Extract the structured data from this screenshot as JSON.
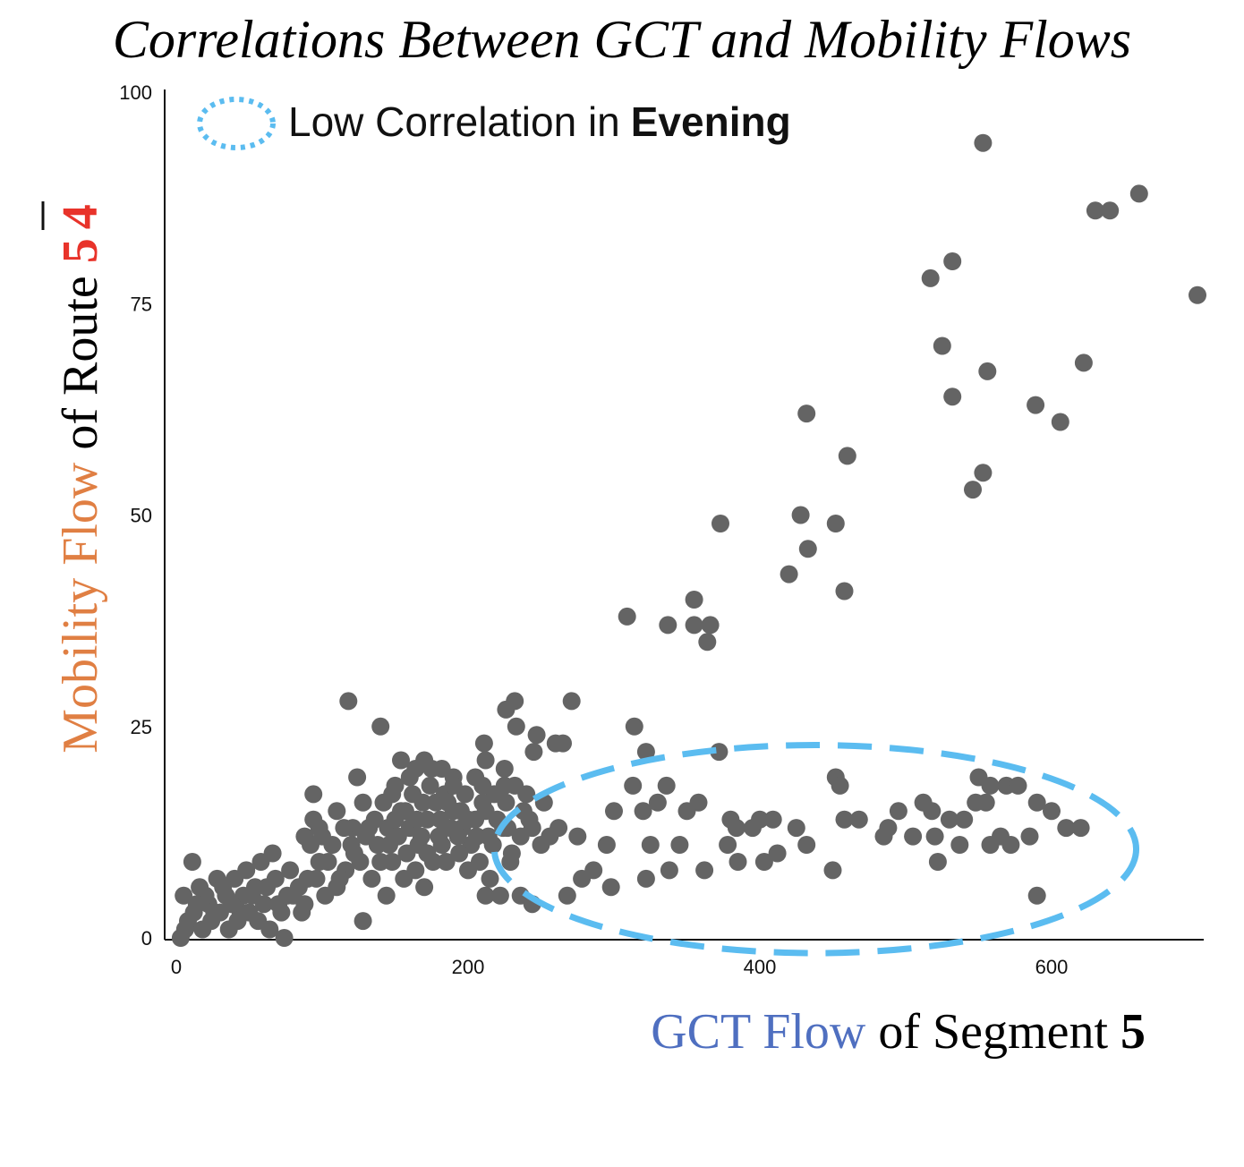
{
  "colors": {
    "point": "#646464",
    "axis": "#111111",
    "ellipse": "#5bbcf0",
    "title": "#000000",
    "mobility": "#e07f43",
    "gct": "#4f6fc0",
    "route_digit": "#e8332a"
  },
  "chart_data": {
    "type": "scatter",
    "title": "Correlations Between GCT and Mobility Flows",
    "xlabel": {
      "colored": "GCT Flow",
      "plain": "of Segment",
      "bold": "5"
    },
    "ylabel": {
      "colored": "Mobility Flow",
      "plain": "of Route",
      "digit_low": "5",
      "digit_high": "4"
    },
    "xlim": [
      0,
      700
    ],
    "ylim": [
      0,
      100
    ],
    "xticks": [
      0,
      200,
      400,
      600
    ],
    "yticks": [
      0,
      25,
      50,
      75,
      100
    ],
    "grid": false,
    "legend": {
      "text": "Low Correlation in",
      "bold": "Evening",
      "placement": "top-left",
      "marker": "dotted-ellipse"
    },
    "annotation": {
      "type": "dashed-ellipse",
      "center": [
        438,
        10.5
      ],
      "radius": [
        220,
        12.3
      ],
      "meaning": "low-correlation region"
    },
    "series": [
      {
        "name": "segment-route observations",
        "points": [
          [
            553,
            94
          ],
          [
            660,
            88
          ],
          [
            630,
            86
          ],
          [
            640,
            86
          ],
          [
            700,
            76
          ],
          [
            517,
            78
          ],
          [
            532,
            80
          ],
          [
            525,
            70
          ],
          [
            532,
            64
          ],
          [
            556,
            67
          ],
          [
            622,
            68
          ],
          [
            589,
            63
          ],
          [
            606,
            61
          ],
          [
            432,
            62
          ],
          [
            460,
            57
          ],
          [
            546,
            53
          ],
          [
            553,
            55
          ],
          [
            373,
            49
          ],
          [
            428,
            50
          ],
          [
            433,
            46
          ],
          [
            452,
            49
          ],
          [
            420,
            43
          ],
          [
            458,
            41
          ],
          [
            355,
            40
          ],
          [
            309,
            38
          ],
          [
            337,
            37
          ],
          [
            355,
            37
          ],
          [
            366,
            37
          ],
          [
            364,
            35
          ],
          [
            118,
            28
          ],
          [
            232,
            28
          ],
          [
            271,
            28
          ],
          [
            226,
            27
          ],
          [
            233,
            25
          ],
          [
            140,
            25
          ],
          [
            314,
            25
          ],
          [
            247,
            24
          ],
          [
            260,
            23
          ],
          [
            265,
            23
          ],
          [
            211,
            23
          ],
          [
            372,
            22
          ],
          [
            322,
            22
          ],
          [
            212,
            21
          ],
          [
            245,
            22
          ],
          [
            225,
            20
          ],
          [
            154,
            21
          ],
          [
            170,
            21
          ],
          [
            164,
            20
          ],
          [
            182,
            20
          ],
          [
            190,
            19
          ],
          [
            124,
            19
          ],
          [
            550,
            19
          ],
          [
            558,
            18
          ],
          [
            452,
            19
          ],
          [
            455,
            18
          ],
          [
            569,
            18
          ],
          [
            577,
            18
          ],
          [
            313,
            18
          ],
          [
            336,
            18
          ],
          [
            94,
            17
          ],
          [
            110,
            15
          ],
          [
            121,
            13
          ],
          [
            98,
            13
          ],
          [
            88,
            12
          ],
          [
            300,
            15
          ],
          [
            320,
            15
          ],
          [
            330,
            16
          ],
          [
            350,
            15
          ],
          [
            358,
            16
          ],
          [
            380,
            14
          ],
          [
            395,
            13
          ],
          [
            400,
            14
          ],
          [
            409,
            14
          ],
          [
            425,
            13
          ],
          [
            468,
            14
          ],
          [
            495,
            15
          ],
          [
            488,
            13
          ],
          [
            512,
            16
          ],
          [
            518,
            15
          ],
          [
            530,
            14
          ],
          [
            540,
            14
          ],
          [
            548,
            16
          ],
          [
            555,
            16
          ],
          [
            565,
            12
          ],
          [
            590,
            16
          ],
          [
            600,
            15
          ],
          [
            610,
            13
          ],
          [
            620,
            13
          ],
          [
            256,
            12
          ],
          [
            275,
            12
          ],
          [
            295,
            11
          ],
          [
            325,
            11
          ],
          [
            345,
            11
          ],
          [
            378,
            11
          ],
          [
            384,
            13
          ],
          [
            403,
            9
          ],
          [
            412,
            10
          ],
          [
            432,
            11
          ],
          [
            458,
            14
          ],
          [
            485,
            12
          ],
          [
            505,
            12
          ],
          [
            520,
            12
          ],
          [
            537,
            11
          ],
          [
            558,
            11
          ],
          [
            572,
            11
          ],
          [
            585,
            12
          ],
          [
            338,
            8
          ],
          [
            362,
            8
          ],
          [
            385,
            9
          ],
          [
            450,
            8
          ],
          [
            522,
            9
          ],
          [
            590,
            5
          ],
          [
            298,
            6
          ],
          [
            322,
            7
          ],
          [
            286,
            8
          ],
          [
            278,
            7
          ],
          [
            268,
            5
          ],
          [
            244,
            4
          ],
          [
            236,
            5
          ],
          [
            222,
            5
          ],
          [
            212,
            5
          ],
          [
            128,
            2
          ],
          [
            74,
            0
          ],
          [
            11,
            9
          ],
          [
            5,
            5
          ],
          [
            16,
            6
          ],
          [
            22,
            4
          ],
          [
            28,
            7
          ],
          [
            34,
            5
          ],
          [
            40,
            7
          ],
          [
            44,
            3
          ],
          [
            48,
            8
          ],
          [
            52,
            5
          ],
          [
            58,
            9
          ],
          [
            62,
            6
          ],
          [
            66,
            10
          ],
          [
            70,
            4
          ],
          [
            78,
            8
          ],
          [
            84,
            6
          ],
          [
            92,
            11
          ],
          [
            8,
            2
          ],
          [
            12,
            3
          ],
          [
            18,
            1
          ],
          [
            24,
            2
          ],
          [
            30,
            3
          ],
          [
            36,
            1
          ],
          [
            42,
            2
          ],
          [
            50,
            3
          ],
          [
            56,
            2
          ],
          [
            64,
            1
          ],
          [
            72,
            3
          ],
          [
            80,
            5
          ],
          [
            88,
            4
          ],
          [
            96,
            7
          ],
          [
            104,
            9
          ],
          [
            110,
            6
          ],
          [
            116,
            8
          ],
          [
            122,
            10
          ],
          [
            130,
            12
          ],
          [
            136,
            14
          ],
          [
            142,
            16
          ],
          [
            148,
            17
          ],
          [
            154,
            15
          ],
          [
            160,
            13
          ],
          [
            166,
            11
          ],
          [
            172,
            14
          ],
          [
            178,
            16
          ],
          [
            184,
            17
          ],
          [
            190,
            15
          ],
          [
            196,
            13
          ],
          [
            202,
            11
          ],
          [
            208,
            9
          ],
          [
            214,
            12
          ],
          [
            220,
            14
          ],
          [
            226,
            16
          ],
          [
            232,
            18
          ],
          [
            238,
            15
          ],
          [
            244,
            13
          ],
          [
            250,
            11
          ],
          [
            134,
            7
          ],
          [
            140,
            9
          ],
          [
            146,
            11
          ],
          [
            152,
            12
          ],
          [
            158,
            10
          ],
          [
            164,
            8
          ],
          [
            170,
            6
          ],
          [
            176,
            9
          ],
          [
            182,
            11
          ],
          [
            188,
            13
          ],
          [
            194,
            10
          ],
          [
            200,
            8
          ],
          [
            206,
            12
          ],
          [
            212,
            15
          ],
          [
            218,
            17
          ],
          [
            224,
            13
          ],
          [
            230,
            10
          ],
          [
            236,
            12
          ],
          [
            242,
            14
          ],
          [
            128,
            16
          ],
          [
            150,
            18
          ],
          [
            162,
            17
          ],
          [
            174,
            18
          ],
          [
            186,
            16
          ],
          [
            198,
            17
          ],
          [
            210,
            18
          ],
          [
            145,
            13
          ],
          [
            157,
            15
          ],
          [
            169,
            16
          ],
          [
            181,
            14
          ],
          [
            193,
            12
          ],
          [
            205,
            14
          ],
          [
            217,
            11
          ],
          [
            229,
            9
          ],
          [
            120,
            11
          ],
          [
            112,
            7
          ],
          [
            102,
            5
          ],
          [
            98,
            9
          ],
          [
            90,
            7
          ],
          [
            86,
            3
          ],
          [
            76,
            5
          ],
          [
            68,
            7
          ],
          [
            60,
            4
          ],
          [
            54,
            6
          ],
          [
            46,
            5
          ],
          [
            38,
            4
          ],
          [
            32,
            6
          ],
          [
            26,
            3
          ],
          [
            20,
            5
          ],
          [
            14,
            4
          ],
          [
            6,
            1
          ],
          [
            3,
            0
          ],
          [
            160,
            19
          ],
          [
            175,
            20
          ],
          [
            190,
            18
          ],
          [
            205,
            19
          ],
          [
            168,
            12
          ],
          [
            156,
            7
          ],
          [
            144,
            5
          ],
          [
            138,
            11
          ],
          [
            126,
            9
          ],
          [
            132,
            13
          ],
          [
            150,
            14
          ],
          [
            165,
            14
          ],
          [
            180,
            12
          ],
          [
            195,
            15
          ],
          [
            210,
            16
          ],
          [
            225,
            18
          ],
          [
            240,
            17
          ],
          [
            252,
            16
          ],
          [
            262,
            13
          ],
          [
            185,
            9
          ],
          [
            172,
            10
          ],
          [
            148,
            9
          ],
          [
            200,
            14
          ],
          [
            215,
            7
          ],
          [
            227,
            13
          ],
          [
            107,
            11
          ],
          [
            115,
            13
          ],
          [
            100,
            12
          ],
          [
            94,
            14
          ]
        ]
      }
    ]
  }
}
